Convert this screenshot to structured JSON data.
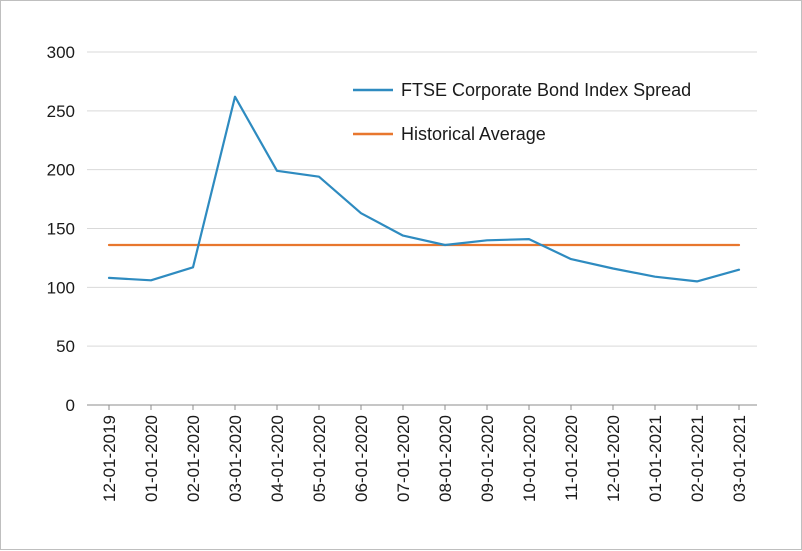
{
  "chart_data": {
    "type": "line",
    "title": "",
    "xlabel": "",
    "ylabel": "",
    "x": [
      "12-01-2019",
      "01-01-2020",
      "02-01-2020",
      "03-01-2020",
      "04-01-2020",
      "05-01-2020",
      "06-01-2020",
      "07-01-2020",
      "08-01-2020",
      "09-01-2020",
      "10-01-2020",
      "11-01-2020",
      "12-01-2020",
      "01-01-2021",
      "02-01-2021",
      "03-01-2021"
    ],
    "ylim": [
      0,
      300
    ],
    "yticks": [
      "0",
      "50",
      "100",
      "150",
      "200",
      "250",
      "300"
    ],
    "grid": "horizontal",
    "legend_position": "top-right",
    "series": [
      {
        "name": "FTSE Corporate Bond Index Spread",
        "color": "#2e8bc0",
        "values": [
          108,
          106,
          117,
          262,
          199,
          194,
          163,
          144,
          136,
          140,
          141,
          124,
          116,
          109,
          105,
          115
        ]
      },
      {
        "name": "Historical Average",
        "color": "#e8772e",
        "values": [
          136,
          136,
          136,
          136,
          136,
          136,
          136,
          136,
          136,
          136,
          136,
          136,
          136,
          136,
          136,
          136
        ]
      }
    ]
  }
}
